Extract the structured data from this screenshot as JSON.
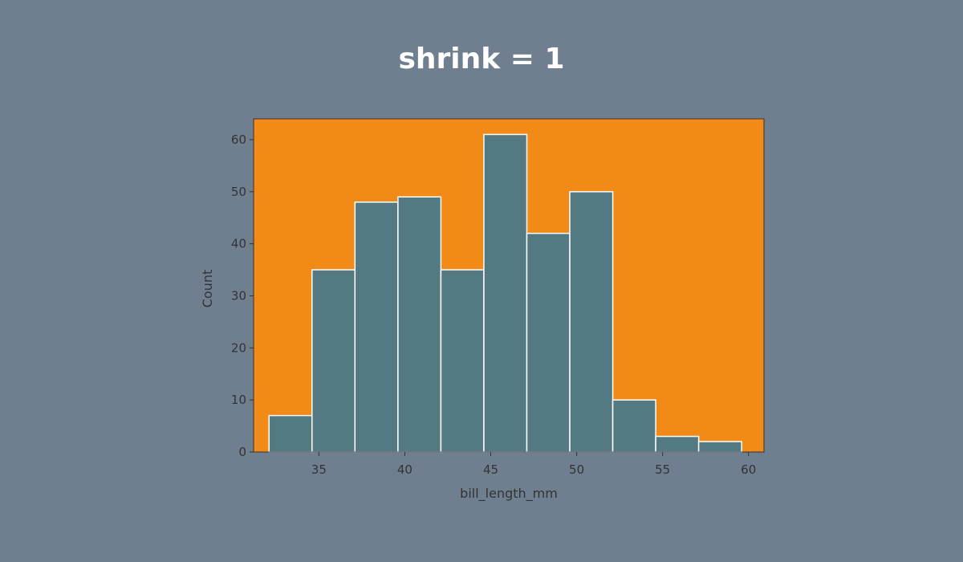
{
  "title": "shrink = 1",
  "colors": {
    "page_background": "#6f7f8f",
    "plot_background": "#f28a18",
    "bar_fill": "#537a82",
    "bar_edge": "#ffffff",
    "title_text": "#ffffff",
    "axis_text": "#333333"
  },
  "chart_data": {
    "type": "bar",
    "title": "shrink = 1",
    "xlabel": "bill_length_mm",
    "ylabel": "Count",
    "grid": false,
    "xlim": [
      31.2,
      60.9
    ],
    "ylim": [
      0,
      64
    ],
    "xticks": [
      35,
      40,
      45,
      50,
      55,
      60
    ],
    "yticks": [
      0,
      10,
      20,
      30,
      40,
      50,
      60
    ],
    "bins": [
      {
        "x0": 32.1,
        "x1": 34.6,
        "count": 7
      },
      {
        "x0": 34.6,
        "x1": 37.1,
        "count": 35
      },
      {
        "x0": 37.1,
        "x1": 39.6,
        "count": 48
      },
      {
        "x0": 39.6,
        "x1": 42.1,
        "count": 49
      },
      {
        "x0": 42.1,
        "x1": 44.6,
        "count": 35
      },
      {
        "x0": 44.6,
        "x1": 47.1,
        "count": 61
      },
      {
        "x0": 47.1,
        "x1": 49.6,
        "count": 42
      },
      {
        "x0": 49.6,
        "x1": 52.1,
        "count": 50
      },
      {
        "x0": 52.1,
        "x1": 54.6,
        "count": 10
      },
      {
        "x0": 54.6,
        "x1": 57.1,
        "count": 3
      },
      {
        "x0": 57.1,
        "x1": 59.6,
        "count": 2
      }
    ]
  }
}
